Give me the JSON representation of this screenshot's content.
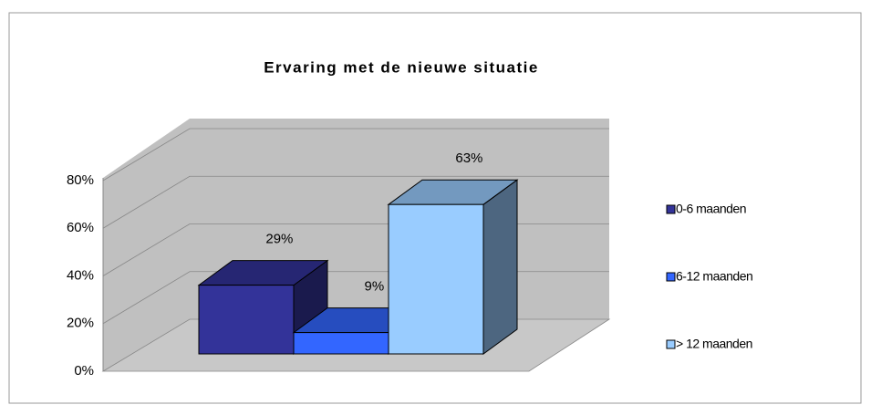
{
  "chart_data": {
    "type": "bar3d",
    "title": "Ervaring met de nieuwe situatie",
    "series": [
      {
        "name": "0-6 maanden",
        "color": "#333399",
        "values": [
          29
        ],
        "value_labels": [
          "29%"
        ]
      },
      {
        "name": "6-12 maanden",
        "color": "#3366ff",
        "values": [
          9
        ],
        "value_labels": [
          "9%"
        ]
      },
      {
        "name": "> 12 maanden",
        "color": "#99ccff",
        "values": [
          63
        ],
        "value_labels": [
          "63%"
        ]
      }
    ],
    "ylim": [
      0,
      80
    ],
    "yticks": [
      {
        "value": 0,
        "label": "0%"
      },
      {
        "value": 20,
        "label": "20%"
      },
      {
        "value": 40,
        "label": "40%"
      },
      {
        "value": 60,
        "label": "60%"
      },
      {
        "value": 80,
        "label": "80%"
      }
    ],
    "grid": true,
    "legend": "right"
  }
}
